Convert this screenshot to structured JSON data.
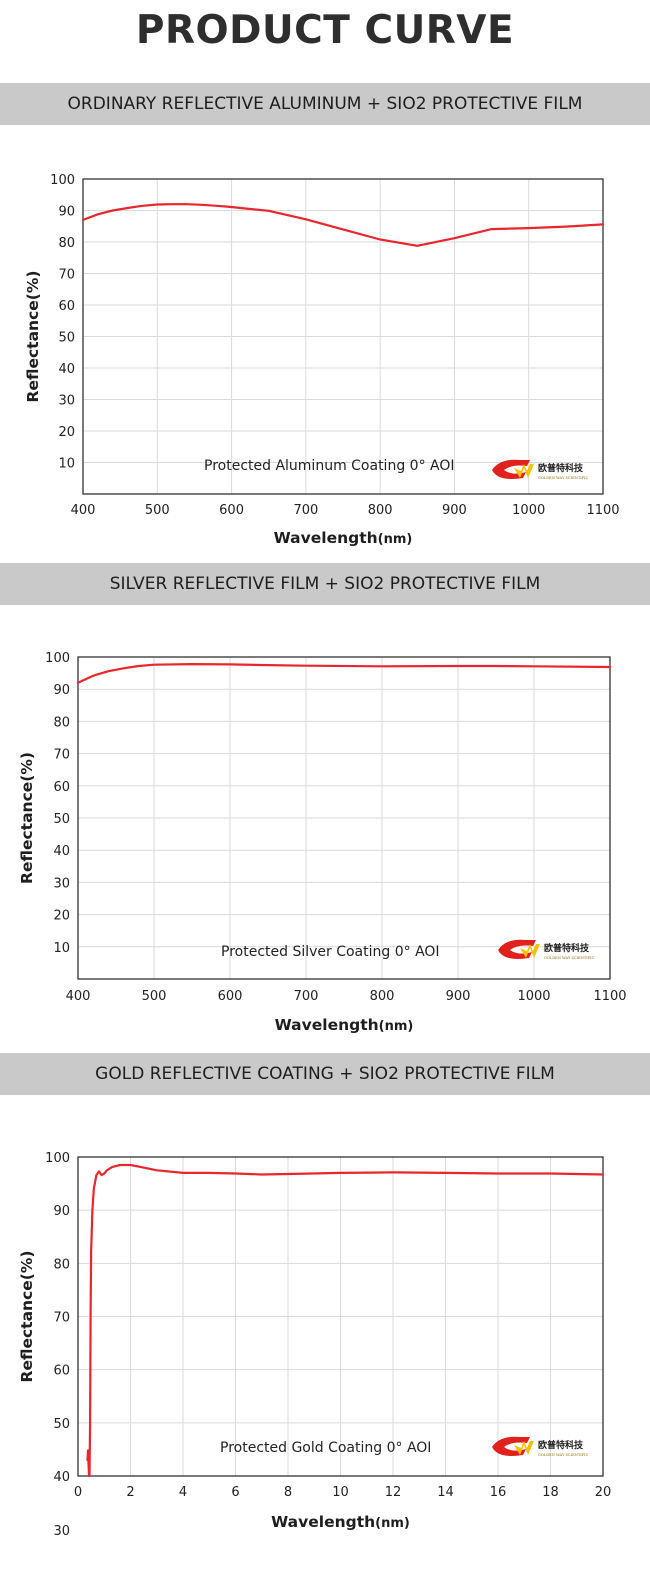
{
  "page": {
    "title": "PRODUCT CURVE"
  },
  "logo": {
    "mark": "GW",
    "chinese": "欧普特科技",
    "english": "GOLDEN WAY SCIENTIFIC",
    "colors": {
      "red": "#e0211d",
      "yellow": "#f2c100"
    }
  },
  "line_color": "#e8262b",
  "chart_data": [
    {
      "type": "line",
      "heading": "ORDINARY REFLECTIVE ALUMINUM + SIO2 PROTECTIVE FILM",
      "xlabel": "Wavelength",
      "xunit": "(nm)",
      "ylabel": "Reflectance(%)",
      "annotation": "Protected Aluminum Coating  0°  AOI",
      "xlim": [
        400,
        1100
      ],
      "ylim": [
        0,
        100
      ],
      "xticks": [
        "400",
        "500",
        "600",
        "700",
        "800",
        "900",
        "1000",
        "1100"
      ],
      "yticks": [
        "10",
        "20",
        "30",
        "40",
        "50",
        "60",
        "70",
        "80",
        "90",
        "100"
      ],
      "grid": true,
      "series": [
        {
          "x": [
            400,
            420,
            440,
            460,
            480,
            500,
            520,
            540,
            560,
            580,
            600,
            620,
            650,
            700,
            750,
            800,
            850,
            900,
            950,
            1000,
            1050,
            1100
          ],
          "y": [
            87,
            88.8,
            90,
            90.8,
            91.5,
            91.9,
            92,
            92,
            91.8,
            91.5,
            91.1,
            90.6,
            89.9,
            87.2,
            84,
            80.8,
            78.8,
            81.2,
            84.1,
            84.4,
            84.9,
            85.6
          ]
        }
      ]
    },
    {
      "type": "line",
      "heading": "SILVER REFLECTIVE FILM + SIO2 PROTECTIVE FILM",
      "xlabel": "Wavelength",
      "xunit": "(nm)",
      "ylabel": "Reflectance(%)",
      "annotation": "Protected Silver Coating  0°  AOI",
      "xlim": [
        400,
        1100
      ],
      "ylim": [
        0,
        100
      ],
      "xticks": [
        "400",
        "500",
        "600",
        "700",
        "800",
        "900",
        "1000",
        "1100"
      ],
      "yticks": [
        "10",
        "20",
        "30",
        "40",
        "50",
        "60",
        "70",
        "80",
        "90",
        "100"
      ],
      "grid": true,
      "series": [
        {
          "x": [
            400,
            420,
            440,
            460,
            480,
            500,
            550,
            600,
            650,
            700,
            800,
            900,
            950,
            1000,
            1100
          ],
          "y": [
            92,
            94.2,
            95.6,
            96.5,
            97.2,
            97.6,
            97.8,
            97.7,
            97.5,
            97.3,
            97.1,
            97.2,
            97.2,
            97.1,
            96.9
          ]
        }
      ]
    },
    {
      "type": "line",
      "heading": "GOLD REFLECTIVE COATING + SIO2 PROTECTIVE FILM",
      "xlabel": "Wavelength",
      "xunit": "(nm)",
      "ylabel": "Reflectance(%)",
      "annotation": "Protected Gold Coating  0°  AOI",
      "xlim": [
        0,
        20
      ],
      "ylim": [
        40,
        100
      ],
      "extra_label": "30",
      "xticks": [
        "0",
        "2",
        "4",
        "6",
        "8",
        "10",
        "12",
        "14",
        "16",
        "18",
        "20"
      ],
      "yticks": [
        "40",
        "50",
        "60",
        "70",
        "80",
        "90",
        "100"
      ],
      "grid": true,
      "series": [
        {
          "x": [
            0.36,
            0.38,
            0.4,
            0.42,
            0.44,
            0.46,
            0.48,
            0.5,
            0.55,
            0.6,
            0.7,
            0.8,
            0.9,
            1.0,
            1.1,
            1.3,
            1.6,
            2.0,
            2.5,
            3.0,
            4.0,
            5.0,
            6.0,
            7.0,
            8.0,
            10.0,
            12.0,
            14.0,
            16.0,
            18.0,
            20.0
          ],
          "y": [
            43,
            44.8,
            42.5,
            40.3,
            40,
            50,
            70,
            82,
            90,
            94,
            96.6,
            97.3,
            96.6,
            96.9,
            97.5,
            98.1,
            98.5,
            98.5,
            98.0,
            97.5,
            97.0,
            97.0,
            96.9,
            96.7,
            96.8,
            97.0,
            97.1,
            97.0,
            96.9,
            96.9,
            96.7
          ]
        }
      ]
    }
  ]
}
